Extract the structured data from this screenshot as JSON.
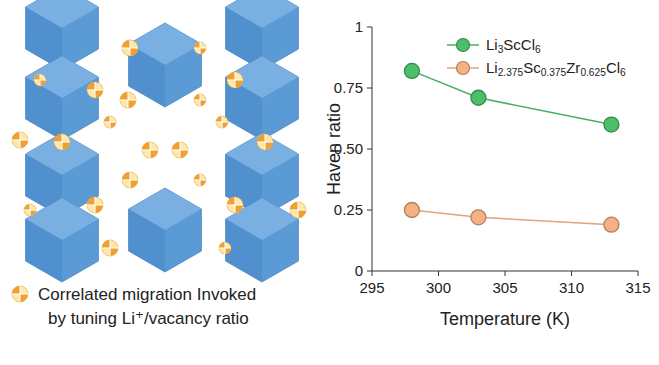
{
  "chart_data": {
    "type": "line",
    "x_label": "Temperature (K)",
    "y_label": "Haven ratio",
    "x": [
      298,
      303,
      313
    ],
    "series": [
      {
        "name": "Li3ScCl6",
        "color": "#4dbf6a",
        "marker": "circle",
        "values": [
          0.82,
          0.71,
          0.6
        ]
      },
      {
        "name": "Li2.375Sc0.375Zr0.625Cl6",
        "color": "#f5b183",
        "marker": "circle",
        "values": [
          0.25,
          0.22,
          0.19
        ]
      }
    ],
    "xlim": [
      295,
      315
    ],
    "xticks": [
      295,
      300,
      305,
      310,
      315
    ],
    "ylim": [
      0,
      1
    ],
    "yticks": [
      0,
      0.25,
      {
        "value": 0.5,
        "label": "0.50"
      },
      0.75,
      1
    ],
    "legend": "top"
  },
  "illustration": {
    "caption": [
      "Correlated migration Invoked",
      "by tuning Li⁺/vacancy ratio"
    ]
  }
}
